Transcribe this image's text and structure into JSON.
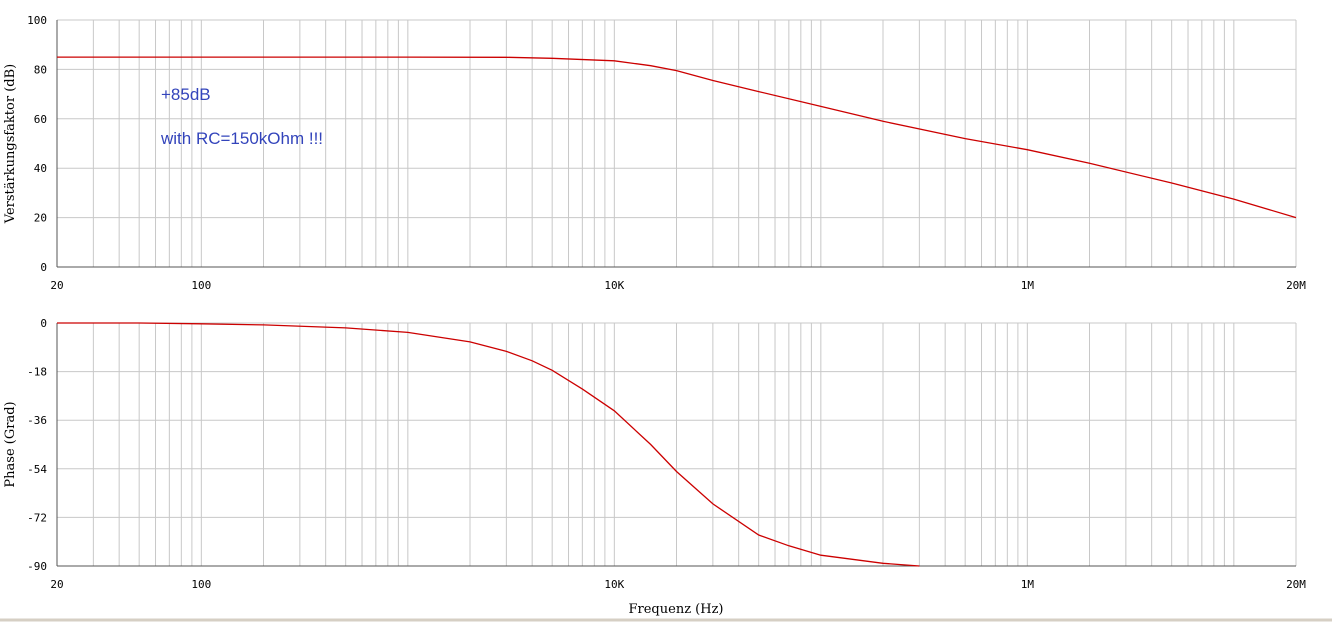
{
  "chart_data": [
    {
      "type": "line",
      "scale": "log-x",
      "ylabel": "Verstärkungsfaktor (dB)",
      "xlabel": "",
      "xlim": [
        20,
        20000000
      ],
      "ylim": [
        0,
        100
      ],
      "ytick_values": [
        0,
        20,
        40,
        60,
        80,
        100
      ],
      "ytick_labels": [
        "0",
        "20",
        "40",
        "60",
        "80",
        "100"
      ],
      "xtick_values": [
        20,
        100,
        10000,
        1000000,
        20000000
      ],
      "xtick_labels": [
        "20",
        "100",
        "10K",
        "1M",
        "20M"
      ],
      "grid": true,
      "annotations": [
        "+85dB",
        "with RC=150kOhm !!!"
      ],
      "series": [
        {
          "color": "#cc0000",
          "x": [
            20,
            100,
            1000,
            3000,
            5000,
            10000,
            15000,
            20000,
            30000,
            50000,
            100000,
            200000,
            500000,
            1000000,
            2000000,
            5000000,
            10000000,
            20000000
          ],
          "y": [
            85,
            85,
            85,
            84.9,
            84.5,
            83.5,
            81.5,
            79.5,
            75.5,
            71,
            65,
            59,
            52,
            47.5,
            42,
            34,
            27.5,
            20
          ]
        }
      ]
    },
    {
      "type": "line",
      "scale": "log-x",
      "ylabel": "Phase (Grad)",
      "xlabel": "Frequenz (Hz)",
      "xlim": [
        20,
        20000000
      ],
      "ylim": [
        -90,
        0
      ],
      "ytick_values": [
        -90,
        -72,
        -54,
        -36,
        -18,
        0
      ],
      "ytick_labels": [
        "-90",
        "-72",
        "-54",
        "-36",
        "-18",
        "0"
      ],
      "xtick_values": [
        20,
        100,
        10000,
        1000000,
        20000000
      ],
      "xtick_labels": [
        "20",
        "100",
        "10K",
        "1M",
        "20M"
      ],
      "grid": true,
      "series": [
        {
          "color": "#cc0000",
          "x": [
            20,
            50,
            100,
            200,
            500,
            1000,
            2000,
            3000,
            4000,
            5000,
            7000,
            10000,
            15000,
            20000,
            30000,
            50000,
            70000,
            100000,
            200000,
            300000
          ],
          "y": [
            0,
            0,
            -0.3,
            -0.7,
            -1.8,
            -3.5,
            -7,
            -10.5,
            -14,
            -17.5,
            -24.5,
            -32.5,
            -45,
            -55,
            -67,
            -78.5,
            -82.5,
            -86,
            -89,
            -90
          ]
        }
      ]
    }
  ]
}
